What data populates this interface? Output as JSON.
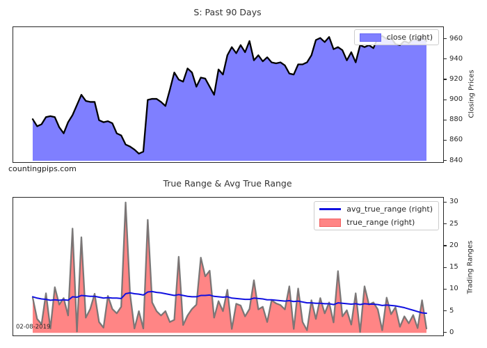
{
  "watermark": "countingpips.com",
  "colors": {
    "close_fill": "#0000ff",
    "close_line": "#000000",
    "true_range_fill": "#ff0000",
    "true_range_outline": "#6e6e6e",
    "avg_true_range_line": "#1010e0",
    "plot_border": "#262626",
    "title_text": "#333333",
    "legend_border": "#cccccc"
  },
  "chart_data": [
    {
      "type": "area",
      "title": "S: Past 90 Days",
      "ylabel": "Closing Prices",
      "yaxis_side": "right",
      "ylim": [
        838.6,
        971.7
      ],
      "yticks": [
        840,
        860,
        880,
        900,
        920,
        940,
        960
      ],
      "grid": false,
      "legend_position": "upper right",
      "x_description": "last 90 trading days (x axis unlabeled)",
      "fill_baseline": 840,
      "series": [
        {
          "name": "close (right)",
          "type": "area",
          "fill_color": "#0000ff",
          "fill_opacity": 0.5,
          "line_color": "#000000",
          "line_width": 2.3,
          "swatch_fill": "#8080ff",
          "swatch_border": "#6666f5",
          "values": [
            881,
            874,
            876,
            883,
            884,
            883,
            873,
            867,
            878,
            885,
            895,
            905,
            899,
            898,
            898,
            880,
            878,
            879,
            877,
            867,
            865,
            856,
            854,
            851,
            847,
            849,
            900,
            901,
            901,
            898,
            894,
            910,
            927,
            920,
            918,
            931,
            927,
            913,
            922,
            921,
            913,
            905,
            930,
            925,
            944,
            952,
            946,
            954,
            947,
            958,
            939,
            944,
            938,
            942,
            937,
            936,
            937,
            934,
            926,
            925,
            935,
            935,
            937,
            944,
            959,
            961,
            957,
            962,
            950,
            952,
            949,
            939,
            947,
            937,
            954,
            952,
            954,
            951,
            961,
            963,
            960,
            961,
            955,
            954,
            958,
            956,
            960,
            959,
            962,
            958
          ]
        }
      ]
    },
    {
      "type": "line+area",
      "title": "True Range & Avg True Range",
      "ylabel": "Trading Ranges",
      "yaxis_side": "right",
      "ylim": [
        -0.6,
        31.1
      ],
      "yticks": [
        0,
        5,
        10,
        15,
        20,
        25,
        30
      ],
      "grid": false,
      "legend_position": "upper right",
      "annotation": "02-08-2019",
      "fill_baseline": 0,
      "series": [
        {
          "name": "avg_true_range (right)",
          "type": "line",
          "line_color": "#1010e0",
          "line_width": 2,
          "swatch_fill": "#1010e0",
          "values": [
            8.3,
            8.0,
            7.8,
            7.7,
            7.5,
            7.6,
            7.5,
            7.6,
            7.5,
            8.3,
            8.2,
            8.6,
            8.5,
            8.4,
            8.4,
            8.2,
            8.0,
            8.1,
            8.0,
            8.0,
            7.9,
            9.0,
            9.2,
            9.0,
            8.9,
            8.7,
            9.4,
            9.5,
            9.3,
            9.2,
            9.0,
            8.8,
            8.6,
            8.8,
            8.6,
            8.4,
            8.3,
            8.3,
            8.6,
            8.6,
            8.7,
            8.4,
            8.3,
            8.2,
            8.3,
            8.0,
            7.9,
            7.8,
            7.7,
            7.7,
            8.0,
            7.9,
            7.8,
            7.6,
            7.6,
            7.5,
            7.4,
            7.3,
            7.4,
            7.2,
            7.3,
            7.1,
            6.9,
            6.9,
            6.8,
            6.8,
            6.7,
            6.7,
            6.5,
            6.9,
            6.8,
            6.7,
            6.6,
            6.7,
            6.5,
            6.7,
            6.6,
            6.6,
            6.5,
            6.3,
            6.4,
            6.3,
            6.2,
            6.0,
            5.8,
            5.5,
            5.2,
            4.9,
            4.6,
            4.5
          ]
        },
        {
          "name": "true_range (right)",
          "type": "area",
          "fill_color": "#ff0000",
          "fill_opacity": 0.48,
          "line_color": "#6e6e6e",
          "line_width": 2.3,
          "swatch_fill": "#ff8585",
          "swatch_border": "#f06060",
          "values": [
            8.1,
            3.2,
            2.0,
            9.1,
            1.0,
            10.5,
            6.5,
            8.0,
            4.0,
            24.0,
            0.3,
            22.0,
            3.5,
            5.5,
            9.0,
            2.5,
            1.2,
            8.5,
            5.5,
            4.5,
            6.0,
            30.0,
            9.0,
            1.0,
            5.0,
            1.0,
            26.0,
            7.0,
            5.0,
            4.0,
            5.0,
            2.5,
            3.0,
            17.5,
            1.8,
            4.0,
            5.5,
            6.5,
            17.3,
            13.0,
            14.3,
            3.5,
            7.3,
            5.0,
            9.9,
            0.9,
            6.7,
            6.3,
            3.8,
            5.5,
            12.1,
            5.4,
            6.0,
            2.5,
            7.5,
            6.8,
            6.4,
            5.4,
            10.7,
            0.9,
            10.2,
            2.5,
            0.6,
            7.5,
            3.2,
            8.0,
            4.5,
            7.0,
            2.4,
            14.2,
            3.8,
            5.2,
            1.9,
            9.1,
            0.2,
            10.7,
            6.5,
            7.0,
            5.4,
            0.6,
            8.1,
            4.3,
            5.9,
            1.4,
            3.8,
            2.2,
            4.1,
            1.1,
            7.5,
            1.0
          ]
        }
      ]
    }
  ]
}
